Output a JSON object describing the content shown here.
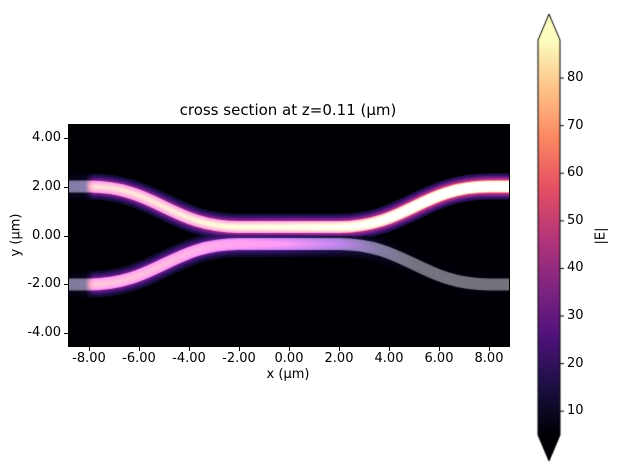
{
  "chart_data": {
    "type": "heatmap",
    "title": "cross section at z=0.11 (μm)",
    "xlabel": "x (μm)",
    "ylabel": "y (μm)",
    "x_range": [
      -8.8,
      8.8
    ],
    "y_range": [
      -4.52,
      4.52
    ],
    "x_tick_values": [
      -8,
      -6,
      -4,
      -2,
      0,
      2,
      4,
      6,
      8
    ],
    "x_tick_labels": [
      "-8.00",
      "-6.00",
      "-4.00",
      "-2.00",
      "0.00",
      "2.00",
      "4.00",
      "6.00",
      "8.00"
    ],
    "y_tick_values": [
      4,
      2,
      0,
      -2,
      -4
    ],
    "y_tick_labels": [
      "4.00",
      "2.00",
      "0.00",
      "-2.00",
      "-4.00"
    ],
    "grid": false,
    "legend": false,
    "colormap": "magma",
    "colormap_anchors": [
      [
        0.0,
        "#000004"
      ],
      [
        0.125,
        "#1c1044"
      ],
      [
        0.25,
        "#4f127b"
      ],
      [
        0.375,
        "#812581"
      ],
      [
        0.5,
        "#b5367a"
      ],
      [
        0.625,
        "#e55064"
      ],
      [
        0.75,
        "#fb8761"
      ],
      [
        0.875,
        "#fec287"
      ],
      [
        1.0,
        "#fcfdbf"
      ]
    ],
    "background_value_color": "#000004",
    "structure_color": "rgba(158,158,164,0.72)",
    "colorbar": {
      "label": "|E|",
      "tick_values": [
        10,
        20,
        30,
        40,
        50,
        60,
        70,
        80
      ],
      "vmin": 5,
      "vmax": 88,
      "extend": "both",
      "position": "right"
    },
    "waveguides": [
      {
        "name": "top-arm",
        "path": [
          {
            "m": [
              -8.8,
              2.0
            ]
          },
          {
            "l": [
              -8.0,
              2.0
            ]
          },
          {
            "c": [
              -5.3,
              2.0,
              -4.7,
              0.35,
              -2.0,
              0.35
            ]
          },
          {
            "l": [
              2.0,
              0.35
            ]
          },
          {
            "c": [
              4.7,
              0.35,
              5.3,
              2.0,
              8.0,
              2.0
            ]
          },
          {
            "l": [
              8.8,
              2.0
            ]
          }
        ],
        "intensity_profile": [
          [
            -8.8,
            12
          ],
          [
            -8.15,
            14
          ],
          [
            -7.8,
            62
          ],
          [
            -5.0,
            64
          ],
          [
            -2.5,
            68
          ],
          [
            0.0,
            72
          ],
          [
            2.0,
            75
          ],
          [
            3.5,
            80
          ],
          [
            5.5,
            87
          ],
          [
            7.0,
            90
          ],
          [
            8.8,
            92
          ]
        ]
      },
      {
        "name": "bottom-arm",
        "path": [
          {
            "m": [
              -8.8,
              -2.0
            ]
          },
          {
            "l": [
              -8.0,
              -2.0
            ]
          },
          {
            "c": [
              -5.3,
              -2.0,
              -4.7,
              -0.35,
              -2.0,
              -0.35
            ]
          },
          {
            "l": [
              2.0,
              -0.35
            ]
          },
          {
            "c": [
              4.7,
              -0.35,
              5.3,
              -2.0,
              8.0,
              -2.0
            ]
          },
          {
            "l": [
              8.8,
              -2.0
            ]
          }
        ],
        "intensity_profile": [
          [
            -8.8,
            10
          ],
          [
            -8.15,
            12
          ],
          [
            -7.8,
            58
          ],
          [
            -5.0,
            54
          ],
          [
            -2.5,
            47
          ],
          [
            0.0,
            38
          ],
          [
            2.0,
            26
          ],
          [
            3.5,
            13
          ],
          [
            5.0,
            6
          ],
          [
            8.8,
            3
          ]
        ]
      }
    ]
  }
}
